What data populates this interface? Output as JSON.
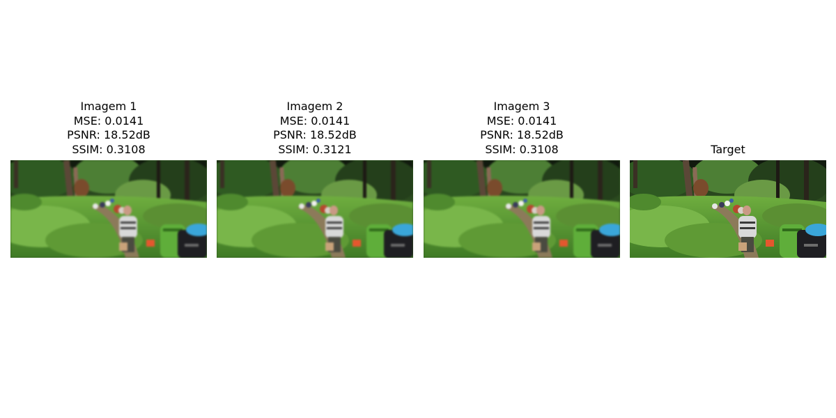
{
  "panels": [
    {
      "title": "Imagem 1",
      "metrics": {
        "mse": "MSE: 0.0141",
        "psnr": "PSNR: 18.52dB",
        "ssim": "SSIM: 0.3108"
      },
      "image_subject": "blurred forest hiking trail photo"
    },
    {
      "title": "Imagem 2",
      "metrics": {
        "mse": "MSE: 0.0141",
        "psnr": "PSNR: 18.52dB",
        "ssim": "SSIM: 0.3121"
      },
      "image_subject": "blurred forest hiking trail photo"
    },
    {
      "title": "Imagem 3",
      "metrics": {
        "mse": "MSE: 0.0141",
        "psnr": "PSNR: 18.52dB",
        "ssim": "SSIM: 0.3108"
      },
      "image_subject": "blurred forest hiking trail photo"
    },
    {
      "title": "Target",
      "image_subject": "sharp forest hiking trail photo"
    }
  ]
}
